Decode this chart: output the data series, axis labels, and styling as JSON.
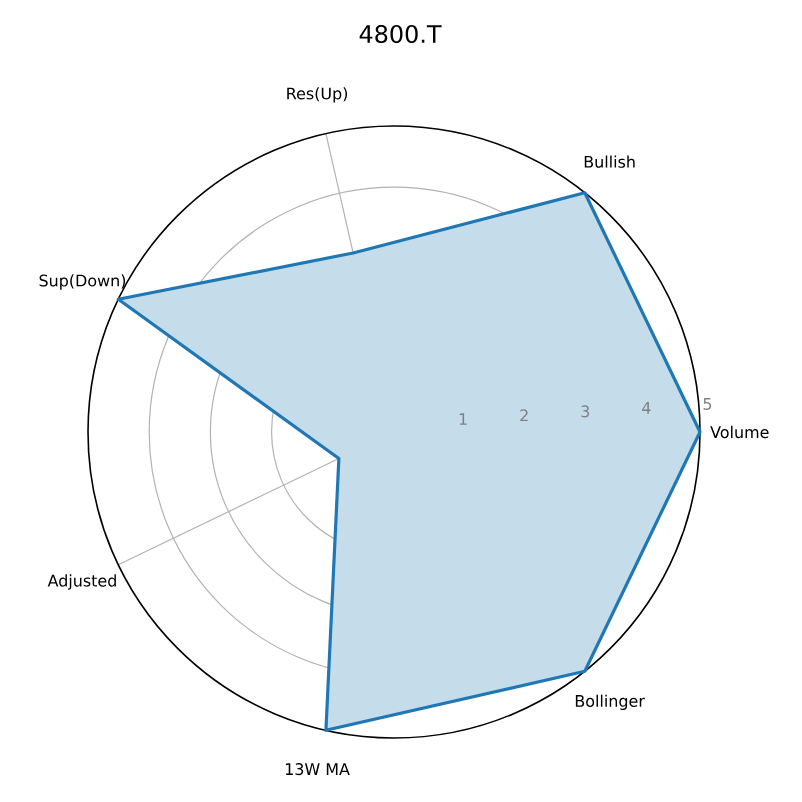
{
  "chart_data": {
    "type": "radar",
    "title": "4800.T",
    "categories": [
      "Bullish",
      "Volume",
      "Bollinger",
      "13W MA",
      "Adjusted",
      "Sup(Down)",
      "Res(Up)"
    ],
    "series": [
      {
        "color": "#1f77b4",
        "values": [
          5,
          5,
          5,
          5,
          1,
          5,
          3
        ]
      }
    ],
    "ylim": [
      0,
      5
    ],
    "yticks": [
      1,
      2,
      3,
      4,
      5
    ],
    "grid": true
  }
}
